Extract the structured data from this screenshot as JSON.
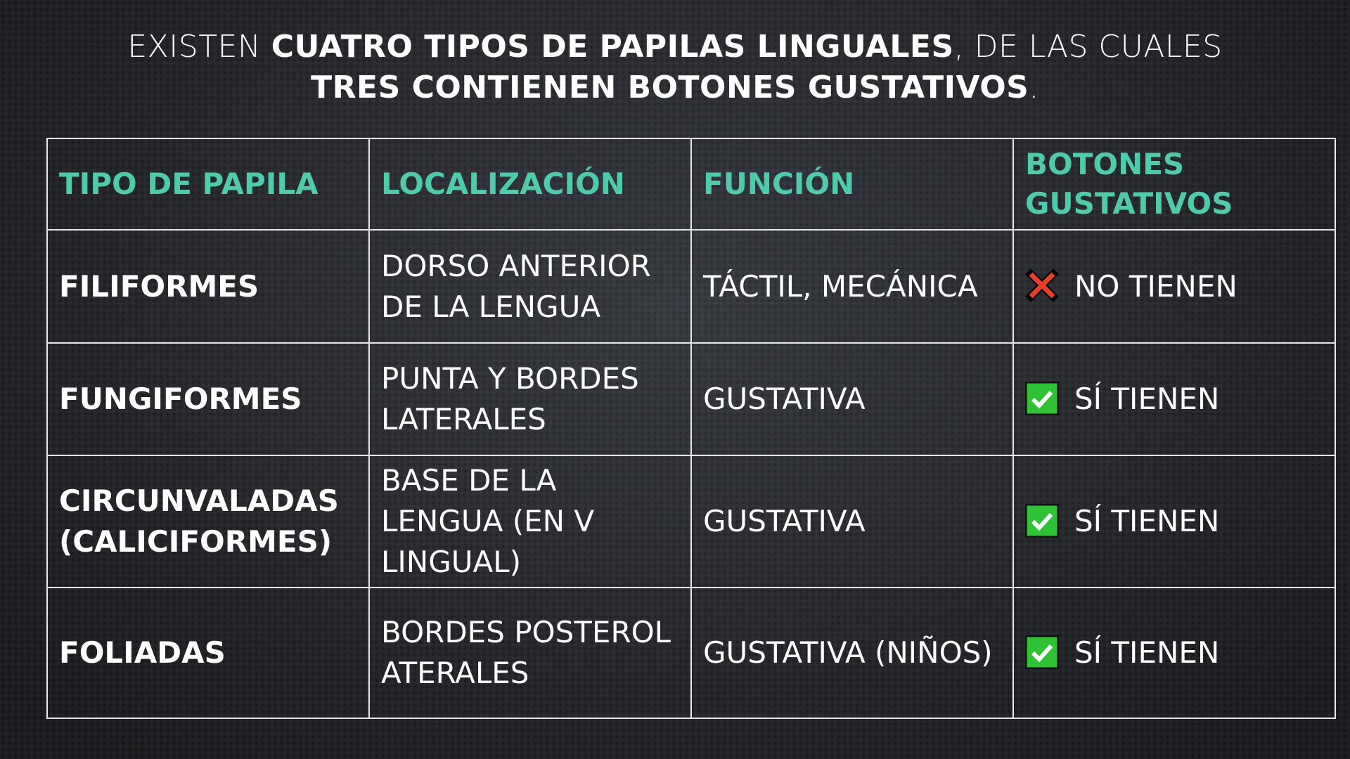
{
  "title": {
    "pre": "EXISTEN ",
    "bold1": "CUATRO TIPOS DE PAPILAS LINGUALES",
    "mid": ", DE LAS CUALES ",
    "bold2": "TRES CONTIENEN BOTONES GUSTATIVOS",
    "post": "."
  },
  "table": {
    "headers": [
      "TIPO DE PAPILA",
      "LOCALIZACIÓN",
      "FUNCIÓN",
      "BOTONES GUSTATIVOS"
    ],
    "rows": [
      {
        "tipo": "FILIFORMES",
        "localizacion": "DORSO ANTERIOR DE LA LENGUA",
        "funcion": "TÁCTIL, MECÁNICA",
        "icon": "red-x-icon",
        "botones": "NO TIENEN"
      },
      {
        "tipo": "FUNGIFORMES",
        "localizacion": "PUNTA Y BORDES LATERALES",
        "funcion": "GUSTATIVA",
        "icon": "green-check-icon",
        "botones": "SÍ TIENEN"
      },
      {
        "tipo": "CIRCUNVALADAS (CALICIFORMES)",
        "localizacion": "BASE DE LA LENGUA (EN V LINGUAL)",
        "funcion": "GUSTATIVA",
        "icon": "green-check-icon",
        "botones": "SÍ TIENEN"
      },
      {
        "tipo": "FOLIADAS",
        "localizacion": "BORDES POSTEROLATERALES",
        "funcion": "GUSTATIVA (NIÑOS)",
        "icon": "green-check-icon",
        "botones": "SÍ TIENEN"
      }
    ]
  },
  "colors": {
    "header": "#4fcbab",
    "check": "#2ec234",
    "cross": "#e8402a"
  }
}
